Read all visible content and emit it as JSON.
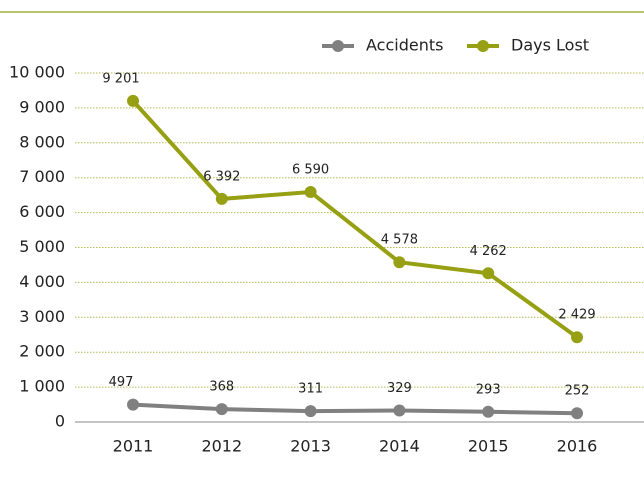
{
  "chart_data": {
    "type": "line",
    "categories": [
      "2011",
      "2012",
      "2013",
      "2014",
      "2015",
      "2016"
    ],
    "series": [
      {
        "name": "Accidents",
        "color": "#808080",
        "values": [
          497,
          368,
          311,
          329,
          293,
          252
        ]
      },
      {
        "name": "Days Lost",
        "color": "#97a013",
        "values": [
          9201,
          6392,
          6590,
          4578,
          4262,
          2429
        ],
        "value_labels": [
          "9 201",
          "6 392",
          "6 590",
          "4 578",
          "4 262",
          "2 429"
        ]
      }
    ],
    "ylim": [
      0,
      10000
    ],
    "yticks": [
      0,
      {
        "value": 1000,
        "label": "1 000"
      },
      {
        "value": 2000,
        "label": "2 000"
      },
      {
        "value": 3000,
        "label": "3 000"
      },
      {
        "value": 4000,
        "label": "4 000"
      },
      {
        "value": 5000,
        "label": "5 000"
      },
      {
        "value": 6000,
        "label": "6 000"
      },
      {
        "value": 7000,
        "label": "7 000"
      },
      {
        "value": 8000,
        "label": "8 000"
      },
      {
        "value": 9000,
        "label": "9 000"
      },
      {
        "value": 10000,
        "label": "10 000"
      }
    ],
    "grid": true
  }
}
